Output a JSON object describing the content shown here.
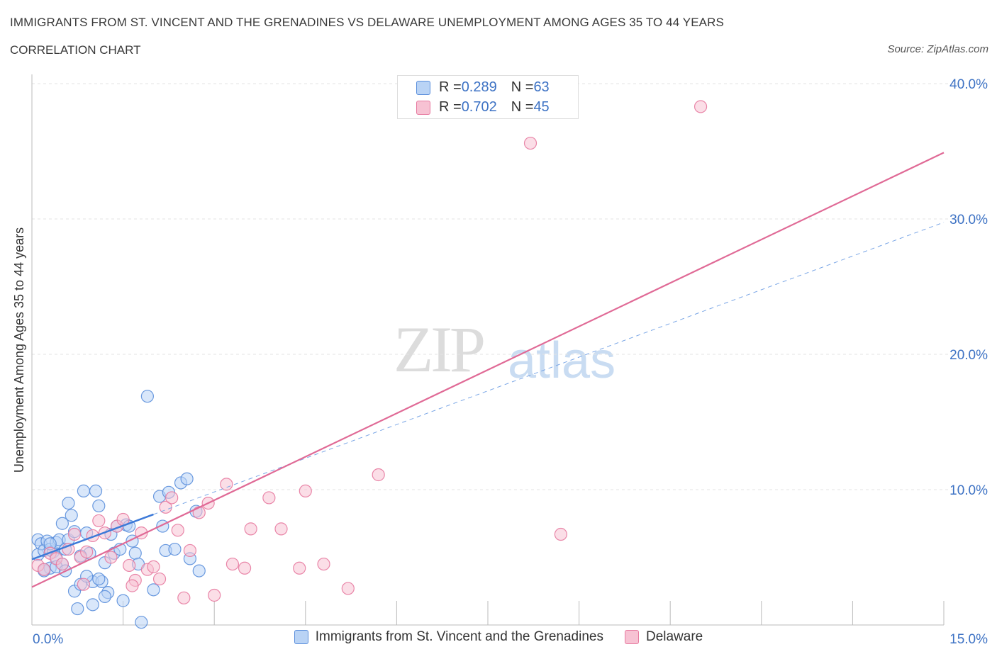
{
  "header": {
    "title": "IMMIGRANTS FROM ST. VINCENT AND THE GRENADINES VS DELAWARE UNEMPLOYMENT AMONG AGES 35 TO 44 YEARS",
    "subtitle": "CORRELATION CHART",
    "source": "Source: ZipAtlas.com"
  },
  "watermark": {
    "zip": "ZIP",
    "atlas": "atlas"
  },
  "stats": {
    "r_label": "R = ",
    "n_label": "N = ",
    "blue": {
      "r": "0.289",
      "n": "63"
    },
    "pink": {
      "r": "0.702",
      "n": "45"
    }
  },
  "colors": {
    "blue": "#5b8fdc",
    "blue_fill": "#b9d3f5",
    "pink": "#e77aa0",
    "pink_fill": "#f7c2d3",
    "axis_label": "#3d72c4"
  },
  "chart_data": {
    "type": "scatter",
    "xlabel": "",
    "ylabel": "Unemployment Among Ages 35 to 44 years",
    "xlim": [
      0,
      15
    ],
    "ylim": [
      0,
      40
    ],
    "x_tick_labels": [
      "0.0%",
      "15.0%"
    ],
    "y_tick_labels": [
      "10.0%",
      "20.0%",
      "30.0%",
      "40.0%"
    ],
    "y_ticks": [
      10,
      20,
      30,
      40
    ],
    "grid": true,
    "legend": "bottom",
    "series": [
      {
        "name": "Immigrants from St. Vincent and the Grenadines",
        "color": "#5b8fdc",
        "points": [
          [
            0.1,
            6.3
          ],
          [
            0.1,
            5.2
          ],
          [
            0.15,
            6.0
          ],
          [
            0.2,
            5.5
          ],
          [
            0.2,
            4.0
          ],
          [
            0.25,
            6.2
          ],
          [
            0.3,
            5.6
          ],
          [
            0.3,
            4.2
          ],
          [
            0.35,
            5.4
          ],
          [
            0.4,
            6.1
          ],
          [
            0.4,
            5.0
          ],
          [
            0.45,
            6.3
          ],
          [
            0.5,
            4.5
          ],
          [
            0.5,
            7.5
          ],
          [
            0.55,
            5.6
          ],
          [
            0.6,
            9.0
          ],
          [
            0.6,
            6.3
          ],
          [
            0.65,
            8.1
          ],
          [
            0.7,
            6.9
          ],
          [
            0.7,
            2.5
          ],
          [
            0.75,
            1.2
          ],
          [
            0.8,
            3.0
          ],
          [
            0.85,
            9.9
          ],
          [
            0.9,
            6.8
          ],
          [
            0.95,
            5.3
          ],
          [
            1.0,
            3.2
          ],
          [
            1.0,
            1.5
          ],
          [
            1.05,
            9.9
          ],
          [
            1.1,
            8.8
          ],
          [
            1.15,
            3.2
          ],
          [
            1.2,
            4.6
          ],
          [
            1.25,
            2.4
          ],
          [
            1.3,
            6.7
          ],
          [
            1.35,
            5.3
          ],
          [
            1.4,
            7.3
          ],
          [
            1.45,
            5.6
          ],
          [
            1.5,
            1.8
          ],
          [
            1.55,
            7.4
          ],
          [
            1.6,
            7.3
          ],
          [
            1.65,
            6.2
          ],
          [
            1.7,
            5.3
          ],
          [
            1.75,
            4.5
          ],
          [
            1.8,
            0.2
          ],
          [
            1.9,
            16.9
          ],
          [
            2.0,
            2.6
          ],
          [
            2.1,
            9.5
          ],
          [
            2.15,
            7.3
          ],
          [
            2.2,
            5.5
          ],
          [
            2.25,
            9.8
          ],
          [
            2.35,
            5.6
          ],
          [
            2.45,
            10.5
          ],
          [
            2.55,
            10.8
          ],
          [
            2.6,
            4.9
          ],
          [
            2.7,
            8.4
          ],
          [
            2.75,
            4.0
          ],
          [
            0.2,
            4.1
          ],
          [
            0.4,
            4.3
          ],
          [
            0.9,
            3.6
          ],
          [
            1.2,
            2.1
          ],
          [
            0.55,
            4.0
          ],
          [
            0.8,
            5.1
          ],
          [
            1.1,
            3.4
          ],
          [
            0.3,
            6.0
          ]
        ]
      },
      {
        "name": "Delaware",
        "color": "#e77aa0",
        "points": [
          [
            0.1,
            4.4
          ],
          [
            0.2,
            4.1
          ],
          [
            0.3,
            5.3
          ],
          [
            0.4,
            4.9
          ],
          [
            0.5,
            4.5
          ],
          [
            0.6,
            5.6
          ],
          [
            0.7,
            6.7
          ],
          [
            0.8,
            5.0
          ],
          [
            0.9,
            5.4
          ],
          [
            1.0,
            6.6
          ],
          [
            1.1,
            7.7
          ],
          [
            1.2,
            6.8
          ],
          [
            1.3,
            5.0
          ],
          [
            1.4,
            7.3
          ],
          [
            1.5,
            7.8
          ],
          [
            1.6,
            4.4
          ],
          [
            1.7,
            3.3
          ],
          [
            1.8,
            6.8
          ],
          [
            1.9,
            4.1
          ],
          [
            2.0,
            4.3
          ],
          [
            2.1,
            3.4
          ],
          [
            2.2,
            8.7
          ],
          [
            2.3,
            9.4
          ],
          [
            2.4,
            7.0
          ],
          [
            2.5,
            2.0
          ],
          [
            2.6,
            5.5
          ],
          [
            2.75,
            8.3
          ],
          [
            2.9,
            9.0
          ],
          [
            3.0,
            2.2
          ],
          [
            3.2,
            10.4
          ],
          [
            3.3,
            4.5
          ],
          [
            3.5,
            4.2
          ],
          [
            3.6,
            7.1
          ],
          [
            3.9,
            9.4
          ],
          [
            4.1,
            7.1
          ],
          [
            4.4,
            4.2
          ],
          [
            4.5,
            9.9
          ],
          [
            4.8,
            4.5
          ],
          [
            5.2,
            2.7
          ],
          [
            5.7,
            11.1
          ],
          [
            8.2,
            35.6
          ],
          [
            8.7,
            6.7
          ],
          [
            11.0,
            38.3
          ],
          [
            0.85,
            3.0
          ],
          [
            1.65,
            2.9
          ]
        ]
      }
    ],
    "trendlines": [
      {
        "series": "Immigrants from St. Vincent and the Grenadines",
        "solid_x": [
          0,
          2.0
        ],
        "dashed_x": [
          2.0,
          15
        ],
        "intercept": 4.85,
        "slope": 1.66
      },
      {
        "series": "Delaware",
        "solid_x": [
          0,
          15
        ],
        "intercept": 2.8,
        "slope": 2.14
      }
    ]
  },
  "legend": {
    "blue_label": "Immigrants from St. Vincent and the Grenadines",
    "pink_label": "Delaware"
  }
}
